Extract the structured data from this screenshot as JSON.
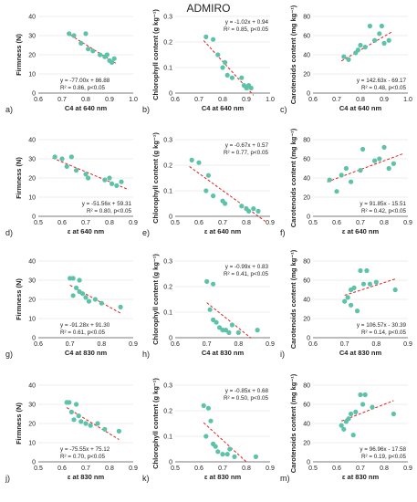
{
  "figure": {
    "title": "ADMIRO"
  },
  "colors": {
    "point": "#5cc2a8",
    "trend": "#e02020",
    "axis": "#555555",
    "grid": "#dddddd",
    "text": "#222222"
  },
  "chart_data": [
    {
      "type": "scatter",
      "panel": "a)",
      "xlabel": "C4 at 640 nm",
      "ylabel": "Firmness (N)",
      "xlim": [
        0.6,
        1.0
      ],
      "xticks": [
        "0.6",
        "0.7",
        "0.8",
        "0.9",
        "1.0"
      ],
      "ylim": [
        0,
        40
      ],
      "yticks": [
        "0",
        "10",
        "20",
        "30",
        "40"
      ],
      "annotation": [
        "y = -77.00x + 86.88",
        "R² = 0.86, p<0.05"
      ],
      "ann_pos": "bottom-left",
      "trend": {
        "slope": -77.0,
        "intercept": 86.88,
        "xrange": [
          0.72,
          0.93
        ]
      },
      "x": [
        0.73,
        0.75,
        0.78,
        0.8,
        0.81,
        0.83,
        0.86,
        0.88,
        0.89,
        0.9,
        0.91,
        0.92
      ],
      "y": [
        31,
        30,
        26,
        31,
        23,
        22,
        20,
        19,
        20,
        17,
        16,
        18
      ]
    },
    {
      "type": "scatter",
      "panel": "b)",
      "xlabel": "C4 at 640 nm",
      "ylabel": "Chlorophyll content (g kg⁻¹)",
      "xlim": [
        0.6,
        1.0
      ],
      "xticks": [
        "0.6",
        "0.7",
        "0.8",
        "0.9",
        "1.0"
      ],
      "ylim": [
        0,
        0.3
      ],
      "yticks": [
        "0",
        "0.1",
        "0.2",
        "0.3"
      ],
      "annotation": [
        "y = -1.02x + 0.94",
        "R² = 0.85, p<0.05"
      ],
      "ann_pos": "top-right",
      "trend": {
        "slope": -1.02,
        "intercept": 0.94,
        "xrange": [
          0.72,
          0.93
        ]
      },
      "x": [
        0.73,
        0.76,
        0.78,
        0.8,
        0.81,
        0.82,
        0.84,
        0.88,
        0.89,
        0.9,
        0.91,
        0.92
      ],
      "y": [
        0.22,
        0.21,
        0.15,
        0.1,
        0.12,
        0.07,
        0.06,
        0.06,
        0.03,
        0.02,
        0.03,
        0.02
      ]
    },
    {
      "type": "scatter",
      "panel": "c)",
      "xlabel": "C4 at 640 nm",
      "ylabel": "Carotenoids content (mg kg⁻¹)",
      "xlim": [
        0.6,
        1.0
      ],
      "xticks": [
        "0.6",
        "0.7",
        "0.8",
        "0.9",
        "1.0"
      ],
      "ylim": [
        0,
        80
      ],
      "yticks": [
        "0",
        "20",
        "40",
        "60",
        "80"
      ],
      "annotation": [
        "y = 142.63x - 69.17",
        "R² = 0.48, p<0.05"
      ],
      "ann_pos": "bottom-right",
      "trend": {
        "slope": 142.63,
        "intercept": -69.17,
        "xrange": [
          0.72,
          0.93
        ]
      },
      "x": [
        0.73,
        0.75,
        0.78,
        0.79,
        0.8,
        0.82,
        0.84,
        0.86,
        0.88,
        0.89,
        0.9,
        0.92
      ],
      "y": [
        38,
        35,
        42,
        45,
        50,
        48,
        70,
        55,
        62,
        70,
        52,
        55
      ]
    },
    {
      "type": "scatter",
      "panel": "d)",
      "xlabel": "ε at 640 nm",
      "ylabel": "Firmness (N)",
      "xlim": [
        0.5,
        0.9
      ],
      "xticks": [
        "0.5",
        "0.6",
        "0.7",
        "0.8",
        "0.9"
      ],
      "ylim": [
        0,
        40
      ],
      "yticks": [
        "0",
        "10",
        "20",
        "30",
        "40"
      ],
      "annotation": [
        "y = -51.56x + 59.31",
        "R² = 0.80, p<0.05"
      ],
      "ann_pos": "bottom-right",
      "trend": {
        "slope": -51.56,
        "intercept": 59.31,
        "xrange": [
          0.56,
          0.88
        ]
      },
      "x": [
        0.57,
        0.6,
        0.62,
        0.64,
        0.66,
        0.7,
        0.71,
        0.78,
        0.8,
        0.81,
        0.83,
        0.85
      ],
      "y": [
        31,
        30,
        26,
        31,
        24,
        22,
        20,
        19,
        20,
        17,
        16,
        18
      ]
    },
    {
      "type": "scatter",
      "panel": "e)",
      "xlabel": "ε at 640 nm",
      "ylabel": "Chlorophyll content (g kg⁻¹)",
      "xlim": [
        0.5,
        0.9
      ],
      "xticks": [
        "0.5",
        "0.6",
        "0.7",
        "0.8",
        "0.9"
      ],
      "ylim": [
        0,
        0.3
      ],
      "yticks": [
        "0",
        "0.1",
        "0.2",
        "0.3"
      ],
      "annotation": [
        "y = -0.67x + 0.57",
        "R² = 0.77, p<0.05"
      ],
      "ann_pos": "top-right",
      "trend": {
        "slope": -0.67,
        "intercept": 0.57,
        "xrange": [
          0.56,
          0.88
        ]
      },
      "x": [
        0.57,
        0.6,
        0.63,
        0.64,
        0.66,
        0.7,
        0.71,
        0.78,
        0.8,
        0.81,
        0.83,
        0.85
      ],
      "y": [
        0.22,
        0.21,
        0.1,
        0.16,
        0.08,
        0.06,
        0.05,
        0.04,
        0.03,
        0.02,
        0.03,
        0.02
      ]
    },
    {
      "type": "scatter",
      "panel": "f)",
      "xlabel": "ε at 640 nm",
      "ylabel": "Carotenoids content (mg kg⁻¹)",
      "xlim": [
        0.5,
        0.9
      ],
      "xticks": [
        "0.5",
        "0.6",
        "0.7",
        "0.8",
        "0.9"
      ],
      "ylim": [
        0,
        80
      ],
      "yticks": [
        "0",
        "20",
        "40",
        "60",
        "80"
      ],
      "annotation": [
        "y = 91.85x - 15.51",
        "R² = 0.42, p<0.05"
      ],
      "ann_pos": "bottom-right",
      "trend": {
        "slope": 91.85,
        "intercept": -15.51,
        "xrange": [
          0.56,
          0.88
        ]
      },
      "x": [
        0.57,
        0.6,
        0.62,
        0.64,
        0.66,
        0.7,
        0.71,
        0.76,
        0.78,
        0.8,
        0.82,
        0.84
      ],
      "y": [
        38,
        26,
        43,
        50,
        36,
        48,
        70,
        58,
        60,
        72,
        50,
        55
      ]
    },
    {
      "type": "scatter",
      "panel": "g)",
      "xlabel": "C4 at 830 nm",
      "ylabel": "Firmness (N)",
      "xlim": [
        0.6,
        0.9
      ],
      "xticks": [
        "0.6",
        "0.7",
        "0.8",
        "0.9"
      ],
      "ylim": [
        0,
        40
      ],
      "yticks": [
        "0",
        "10",
        "20",
        "30",
        "40"
      ],
      "annotation": [
        "y = -91.28x + 91.30",
        "R² = 0.61, p<0.05"
      ],
      "ann_pos": "bottom-left",
      "trend": {
        "slope": -91.28,
        "intercept": 91.3,
        "xrange": [
          0.7,
          0.86
        ]
      },
      "x": [
        0.7,
        0.71,
        0.72,
        0.73,
        0.74,
        0.75,
        0.76,
        0.78,
        0.8,
        0.86,
        0.71,
        0.73
      ],
      "y": [
        31,
        31,
        26,
        30,
        23,
        21,
        19,
        20,
        18,
        16,
        22,
        24
      ]
    },
    {
      "type": "scatter",
      "panel": "h)",
      "xlabel": "C4 at 830 nm",
      "ylabel": "Chlorophyll content (g kg⁻¹)",
      "xlim": [
        0.6,
        0.9
      ],
      "xticks": [
        "0.6",
        "0.7",
        "0.8",
        "0.9"
      ],
      "ylim": [
        0,
        0.3
      ],
      "yticks": [
        "0",
        "0.1",
        "0.2",
        "0.3"
      ],
      "annotation": [
        "y = -0.99x + 0.83",
        "R² = 0.41, p<0.05"
      ],
      "ann_pos": "top-right",
      "trend": {
        "slope": -0.99,
        "intercept": 0.83,
        "xrange": [
          0.7,
          0.84
        ]
      },
      "x": [
        0.7,
        0.71,
        0.72,
        0.72,
        0.73,
        0.74,
        0.75,
        0.76,
        0.77,
        0.8,
        0.86,
        0.78
      ],
      "y": [
        0.22,
        0.11,
        0.21,
        0.07,
        0.06,
        0.04,
        0.03,
        0.03,
        0.02,
        0.02,
        0.03,
        0.05
      ]
    },
    {
      "type": "scatter",
      "panel": "i)",
      "xlabel": "C4 at 830 nm",
      "ylabel": "Carotenoids content (mg kg⁻¹)",
      "xlim": [
        0.6,
        0.9
      ],
      "xticks": [
        "0.6",
        "0.7",
        "0.8",
        "0.9"
      ],
      "ylim": [
        0,
        80
      ],
      "yticks": [
        "0",
        "20",
        "40",
        "60",
        "80"
      ],
      "annotation": [
        "y = 106.57x - 30.39",
        "R² = 0.14, p<0.05"
      ],
      "ann_pos": "bottom-right",
      "trend": {
        "slope": 106.57,
        "intercept": -30.39,
        "xrange": [
          0.7,
          0.86
        ]
      },
      "x": [
        0.7,
        0.71,
        0.72,
        0.73,
        0.74,
        0.75,
        0.76,
        0.77,
        0.78,
        0.8,
        0.86,
        0.72
      ],
      "y": [
        38,
        42,
        50,
        52,
        28,
        70,
        56,
        70,
        56,
        58,
        50,
        34
      ]
    },
    {
      "type": "scatter",
      "panel": "j)",
      "xlabel": "ε at 830 nm",
      "ylabel": "Firmness (N)",
      "xlim": [
        0.5,
        0.9
      ],
      "xticks": [
        "0.5",
        "0.6",
        "0.7",
        "0.8",
        "0.9"
      ],
      "ylim": [
        0,
        40
      ],
      "yticks": [
        "0",
        "10",
        "20",
        "30",
        "40"
      ],
      "annotation": [
        "y = -75.55x + 75.12",
        "R² = 0.70, p<0.05"
      ],
      "ann_pos": "bottom-left",
      "trend": {
        "slope": -75.55,
        "intercept": 75.12,
        "xrange": [
          0.62,
          0.84
        ]
      },
      "x": [
        0.62,
        0.63,
        0.64,
        0.66,
        0.67,
        0.68,
        0.7,
        0.72,
        0.75,
        0.78,
        0.84,
        0.65
      ],
      "y": [
        31,
        31,
        26,
        30,
        24,
        21,
        20,
        19,
        20,
        17,
        16,
        22
      ]
    },
    {
      "type": "scatter",
      "panel": "k)",
      "xlabel": "ε at 830 nm",
      "ylabel": "Chlorophyll content (g kg⁻¹)",
      "xlim": [
        0.5,
        0.9
      ],
      "xticks": [
        "0.5",
        "0.6",
        "0.7",
        "0.8",
        "0.9"
      ],
      "ylim": [
        0,
        0.3
      ],
      "yticks": [
        "0",
        "0.1",
        "0.2",
        "0.3"
      ],
      "annotation": [
        "y = -0.85x + 0.68",
        "R² = 0.50, p<0.05"
      ],
      "ann_pos": "top-right",
      "trend": {
        "slope": -0.85,
        "intercept": 0.68,
        "xrange": [
          0.62,
          0.8
        ]
      },
      "x": [
        0.62,
        0.63,
        0.64,
        0.65,
        0.66,
        0.67,
        0.68,
        0.7,
        0.72,
        0.75,
        0.84,
        0.73
      ],
      "y": [
        0.22,
        0.1,
        0.21,
        0.16,
        0.07,
        0.06,
        0.04,
        0.03,
        0.03,
        0.02,
        0.02,
        0.05
      ]
    },
    {
      "type": "scatter",
      "panel": "m)",
      "xlabel": "ε at 830 nm",
      "ylabel": "Carotenoids content (mg kg⁻¹)",
      "xlim": [
        0.5,
        0.9
      ],
      "xticks": [
        "0.5",
        "0.6",
        "0.7",
        "0.8",
        "0.9"
      ],
      "ylim": [
        0,
        80
      ],
      "yticks": [
        "0",
        "20",
        "40",
        "60",
        "80"
      ],
      "annotation": [
        "y = 96.96x - 17.58",
        "R² = 0.19, p<0.05"
      ],
      "ann_pos": "bottom-right",
      "trend": {
        "slope": 96.96,
        "intercept": -17.58,
        "xrange": [
          0.62,
          0.84
        ]
      },
      "x": [
        0.62,
        0.63,
        0.64,
        0.66,
        0.67,
        0.68,
        0.7,
        0.71,
        0.72,
        0.75,
        0.84,
        0.65
      ],
      "y": [
        38,
        34,
        42,
        50,
        28,
        52,
        70,
        60,
        70,
        57,
        50,
        45
      ]
    }
  ]
}
